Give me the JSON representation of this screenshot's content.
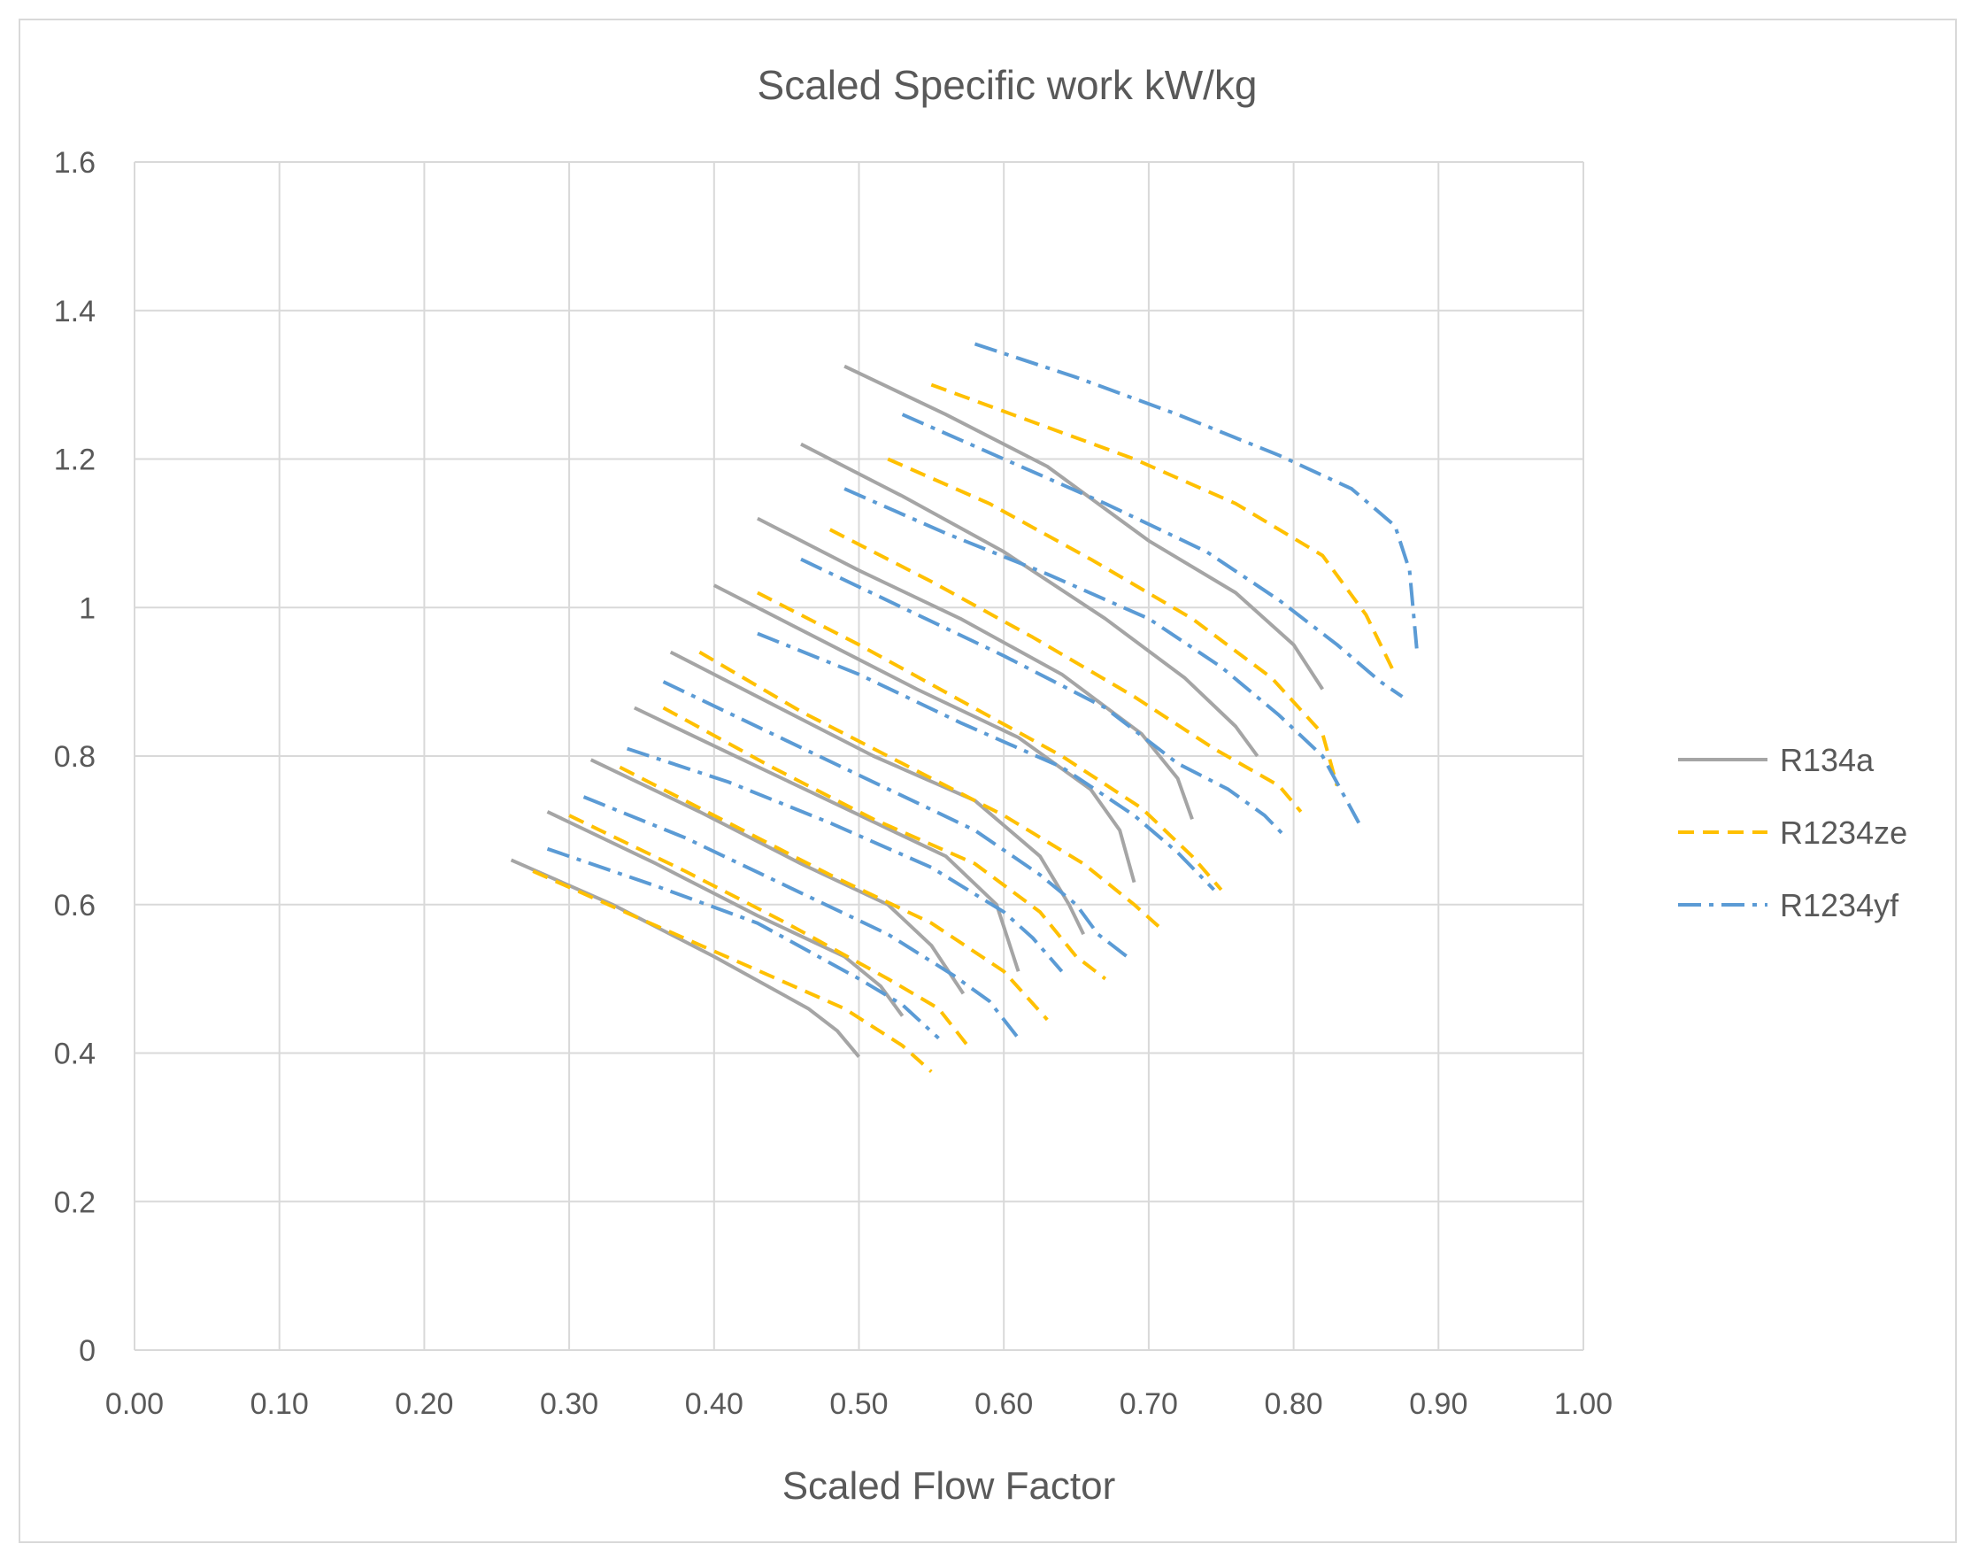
{
  "chart_data": {
    "type": "line",
    "title": "Scaled Specific work kW/kg",
    "xlabel": "Scaled Flow Factor",
    "ylabel": "",
    "xlim": [
      0,
      1
    ],
    "ylim": [
      0,
      1.6
    ],
    "x_ticks": [
      "0.00",
      "0.10",
      "0.20",
      "0.30",
      "0.40",
      "0.50",
      "0.60",
      "0.70",
      "0.80",
      "0.90",
      "1.00"
    ],
    "y_ticks": [
      "0",
      "0.2",
      "0.4",
      "0.6",
      "0.8",
      "1",
      "1.2",
      "1.4",
      "1.6"
    ],
    "grid": true,
    "legend_position": "right",
    "series": [
      {
        "name": "R134a",
        "color": "#a5a5a5",
        "dash": "solid",
        "curves": [
          [
            [
              0.26,
              0.66
            ],
            [
              0.33,
              0.6
            ],
            [
              0.4,
              0.53
            ],
            [
              0.465,
              0.46
            ],
            [
              0.485,
              0.43
            ],
            [
              0.5,
              0.395
            ]
          ],
          [
            [
              0.285,
              0.725
            ],
            [
              0.36,
              0.655
            ],
            [
              0.43,
              0.585
            ],
            [
              0.49,
              0.53
            ],
            [
              0.515,
              0.49
            ],
            [
              0.53,
              0.45
            ]
          ],
          [
            [
              0.315,
              0.795
            ],
            [
              0.39,
              0.725
            ],
            [
              0.46,
              0.655
            ],
            [
              0.52,
              0.6
            ],
            [
              0.55,
              0.545
            ],
            [
              0.572,
              0.48
            ]
          ],
          [
            [
              0.345,
              0.865
            ],
            [
              0.42,
              0.795
            ],
            [
              0.49,
              0.73
            ],
            [
              0.56,
              0.665
            ],
            [
              0.595,
              0.6
            ],
            [
              0.61,
              0.51
            ]
          ],
          [
            [
              0.37,
              0.94
            ],
            [
              0.44,
              0.87
            ],
            [
              0.51,
              0.8
            ],
            [
              0.58,
              0.74
            ],
            [
              0.625,
              0.665
            ],
            [
              0.645,
              0.6
            ],
            [
              0.655,
              0.56
            ]
          ],
          [
            [
              0.4,
              1.03
            ],
            [
              0.47,
              0.96
            ],
            [
              0.54,
              0.89
            ],
            [
              0.61,
              0.825
            ],
            [
              0.66,
              0.755
            ],
            [
              0.68,
              0.7
            ],
            [
              0.69,
              0.63
            ]
          ],
          [
            [
              0.43,
              1.12
            ],
            [
              0.5,
              1.05
            ],
            [
              0.57,
              0.985
            ],
            [
              0.64,
              0.91
            ],
            [
              0.695,
              0.83
            ],
            [
              0.72,
              0.77
            ],
            [
              0.73,
              0.715
            ]
          ],
          [
            [
              0.46,
              1.22
            ],
            [
              0.53,
              1.15
            ],
            [
              0.6,
              1.075
            ],
            [
              0.67,
              0.985
            ],
            [
              0.725,
              0.905
            ],
            [
              0.76,
              0.84
            ],
            [
              0.775,
              0.8
            ]
          ],
          [
            [
              0.49,
              1.325
            ],
            [
              0.56,
              1.26
            ],
            [
              0.63,
              1.19
            ],
            [
              0.7,
              1.09
            ],
            [
              0.76,
              1.02
            ],
            [
              0.8,
              0.95
            ],
            [
              0.82,
              0.89
            ]
          ]
        ]
      },
      {
        "name": "R1234ze",
        "color": "#ffc000",
        "dash": "dashed",
        "curves": [
          [
            [
              0.275,
              0.645
            ],
            [
              0.35,
              0.58
            ],
            [
              0.42,
              0.52
            ],
            [
              0.49,
              0.46
            ],
            [
              0.53,
              0.41
            ],
            [
              0.55,
              0.375
            ]
          ],
          [
            [
              0.3,
              0.72
            ],
            [
              0.38,
              0.645
            ],
            [
              0.45,
              0.575
            ],
            [
              0.52,
              0.5
            ],
            [
              0.555,
              0.46
            ],
            [
              0.575,
              0.41
            ]
          ],
          [
            [
              0.335,
              0.785
            ],
            [
              0.41,
              0.71
            ],
            [
              0.48,
              0.64
            ],
            [
              0.55,
              0.575
            ],
            [
              0.6,
              0.51
            ],
            [
              0.63,
              0.445
            ]
          ],
          [
            [
              0.365,
              0.865
            ],
            [
              0.44,
              0.785
            ],
            [
              0.51,
              0.715
            ],
            [
              0.58,
              0.655
            ],
            [
              0.625,
              0.59
            ],
            [
              0.65,
              0.53
            ],
            [
              0.67,
              0.5
            ]
          ],
          [
            [
              0.39,
              0.94
            ],
            [
              0.46,
              0.86
            ],
            [
              0.53,
              0.79
            ],
            [
              0.6,
              0.72
            ],
            [
              0.655,
              0.655
            ],
            [
              0.69,
              0.6
            ],
            [
              0.71,
              0.565
            ]
          ],
          [
            [
              0.43,
              1.02
            ],
            [
              0.5,
              0.95
            ],
            [
              0.57,
              0.875
            ],
            [
              0.64,
              0.8
            ],
            [
              0.695,
              0.73
            ],
            [
              0.73,
              0.665
            ],
            [
              0.75,
              0.62
            ]
          ],
          [
            [
              0.48,
              1.105
            ],
            [
              0.55,
              1.035
            ],
            [
              0.62,
              0.96
            ],
            [
              0.69,
              0.88
            ],
            [
              0.745,
              0.81
            ],
            [
              0.79,
              0.76
            ],
            [
              0.805,
              0.725
            ]
          ],
          [
            [
              0.52,
              1.2
            ],
            [
              0.59,
              1.14
            ],
            [
              0.66,
              1.065
            ],
            [
              0.73,
              0.985
            ],
            [
              0.785,
              0.905
            ],
            [
              0.82,
              0.83
            ],
            [
              0.83,
              0.76
            ]
          ],
          [
            [
              0.55,
              1.3
            ],
            [
              0.62,
              1.25
            ],
            [
              0.69,
              1.2
            ],
            [
              0.76,
              1.14
            ],
            [
              0.82,
              1.07
            ],
            [
              0.85,
              0.99
            ],
            [
              0.87,
              0.91
            ]
          ]
        ]
      },
      {
        "name": "R1234yf",
        "color": "#5b9bd5",
        "dash": "dashdot",
        "curves": [
          [
            [
              0.285,
              0.675
            ],
            [
              0.36,
              0.625
            ],
            [
              0.43,
              0.575
            ],
            [
              0.5,
              0.5
            ],
            [
              0.53,
              0.465
            ],
            [
              0.555,
              0.42
            ]
          ],
          [
            [
              0.31,
              0.745
            ],
            [
              0.38,
              0.69
            ],
            [
              0.45,
              0.625
            ],
            [
              0.52,
              0.56
            ],
            [
              0.565,
              0.505
            ],
            [
              0.59,
              0.47
            ],
            [
              0.61,
              0.42
            ]
          ],
          [
            [
              0.34,
              0.81
            ],
            [
              0.41,
              0.765
            ],
            [
              0.48,
              0.71
            ],
            [
              0.55,
              0.65
            ],
            [
              0.6,
              0.59
            ],
            [
              0.62,
              0.555
            ],
            [
              0.64,
              0.51
            ]
          ],
          [
            [
              0.365,
              0.9
            ],
            [
              0.44,
              0.83
            ],
            [
              0.51,
              0.765
            ],
            [
              0.58,
              0.7
            ],
            [
              0.625,
              0.64
            ],
            [
              0.65,
              0.6
            ],
            [
              0.665,
              0.56
            ],
            [
              0.685,
              0.53
            ]
          ],
          [
            [
              0.43,
              0.965
            ],
            [
              0.5,
              0.91
            ],
            [
              0.57,
              0.845
            ],
            [
              0.64,
              0.785
            ],
            [
              0.69,
              0.72
            ],
            [
              0.72,
              0.67
            ],
            [
              0.745,
              0.62
            ]
          ],
          [
            [
              0.46,
              1.065
            ],
            [
              0.53,
              1.0
            ],
            [
              0.6,
              0.935
            ],
            [
              0.67,
              0.865
            ],
            [
              0.72,
              0.79
            ],
            [
              0.755,
              0.755
            ],
            [
              0.78,
              0.72
            ],
            [
              0.795,
              0.69
            ]
          ],
          [
            [
              0.49,
              1.16
            ],
            [
              0.56,
              1.1
            ],
            [
              0.63,
              1.045
            ],
            [
              0.7,
              0.985
            ],
            [
              0.75,
              0.92
            ],
            [
              0.79,
              0.855
            ],
            [
              0.82,
              0.8
            ],
            [
              0.845,
              0.71
            ]
          ],
          [
            [
              0.53,
              1.26
            ],
            [
              0.6,
              1.2
            ],
            [
              0.67,
              1.14
            ],
            [
              0.74,
              1.075
            ],
            [
              0.79,
              1.01
            ],
            [
              0.83,
              0.95
            ],
            [
              0.86,
              0.9
            ],
            [
              0.875,
              0.88
            ]
          ],
          [
            [
              0.58,
              1.355
            ],
            [
              0.65,
              1.31
            ],
            [
              0.72,
              1.26
            ],
            [
              0.79,
              1.205
            ],
            [
              0.84,
              1.16
            ],
            [
              0.87,
              1.11
            ],
            [
              0.88,
              1.05
            ],
            [
              0.885,
              0.945
            ]
          ]
        ]
      }
    ]
  }
}
